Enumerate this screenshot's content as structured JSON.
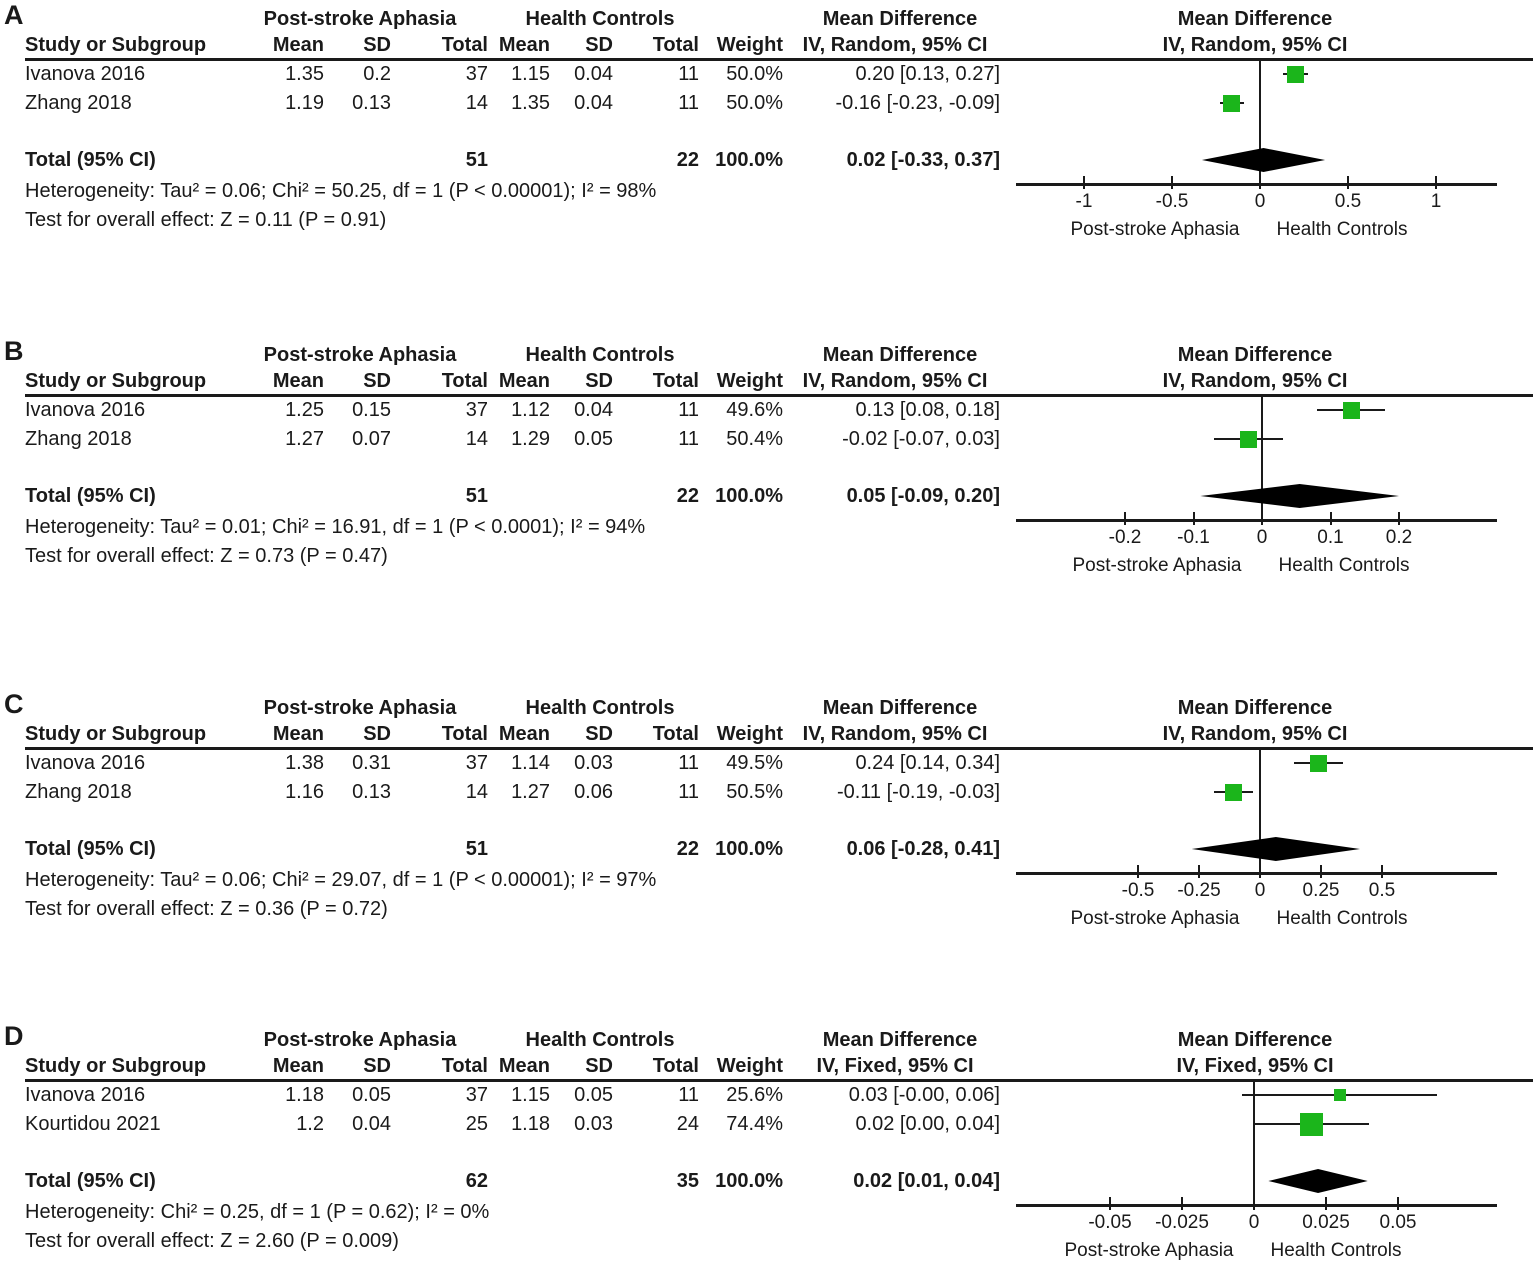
{
  "style": {
    "marker_color": "#1bb51b",
    "diamond_color": "#000000",
    "line_color": "#1a1a1a",
    "text_color": "#1a1a1a"
  },
  "chart_data": [
    {
      "type": "forest",
      "panel": "A",
      "effect_header": "Mean Difference",
      "effect_subheader": "IV, Random, 95% CI",
      "group_headers": [
        "Post-stroke Aphasia",
        "Health Controls"
      ],
      "columns": {
        "study": "Study or Subgroup",
        "mean": "Mean",
        "sd": "SD",
        "total": "Total",
        "weight": "Weight"
      },
      "studies": [
        {
          "study": "Ivanova 2016",
          "mean1": "1.35",
          "sd1": "0.2",
          "total1": "37",
          "mean2": "1.15",
          "sd2": "0.04",
          "total2": "11",
          "weight": "50.0%",
          "ci_text": "0.20 [0.13, 0.27]",
          "est": 0.2,
          "lo": 0.13,
          "hi": 0.27,
          "weight_val": 50.0
        },
        {
          "study": "Zhang 2018",
          "mean1": "1.19",
          "sd1": "0.13",
          "total1": "14",
          "mean2": "1.35",
          "sd2": "0.04",
          "total2": "11",
          "weight": "50.0%",
          "ci_text": "-0.16 [-0.23, -0.09]",
          "est": -0.16,
          "lo": -0.23,
          "hi": -0.09,
          "weight_val": 50.0
        }
      ],
      "total": {
        "label": "Total (95% CI)",
        "total1": "51",
        "total2": "22",
        "weight": "100.0%",
        "ci_text": "0.02 [-0.33, 0.37]",
        "est": 0.02,
        "lo": -0.33,
        "hi": 0.37
      },
      "heterogeneity": "Heterogeneity: Tau² = 0.06; Chi² = 50.25, df = 1 (P < 0.00001); I² = 98%",
      "overall_effect_test": "Test for overall effect: Z = 0.11 (P = 0.91)",
      "axis": {
        "ticks": [
          -1,
          -0.5,
          0,
          0.5,
          1
        ],
        "left_label": "Post-stroke Aphasia",
        "right_label": "Health Controls"
      }
    },
    {
      "type": "forest",
      "panel": "B",
      "effect_header": "Mean Difference",
      "effect_subheader": "IV, Random, 95% CI",
      "group_headers": [
        "Post-stroke Aphasia",
        "Health Controls"
      ],
      "columns": {
        "study": "Study or Subgroup",
        "mean": "Mean",
        "sd": "SD",
        "total": "Total",
        "weight": "Weight"
      },
      "studies": [
        {
          "study": "Ivanova 2016",
          "mean1": "1.25",
          "sd1": "0.15",
          "total1": "37",
          "mean2": "1.12",
          "sd2": "0.04",
          "total2": "11",
          "weight": "49.6%",
          "ci_text": "0.13 [0.08, 0.18]",
          "est": 0.13,
          "lo": 0.08,
          "hi": 0.18,
          "weight_val": 49.6
        },
        {
          "study": "Zhang 2018",
          "mean1": "1.27",
          "sd1": "0.07",
          "total1": "14",
          "mean2": "1.29",
          "sd2": "0.05",
          "total2": "11",
          "weight": "50.4%",
          "ci_text": "-0.02 [-0.07, 0.03]",
          "est": -0.02,
          "lo": -0.07,
          "hi": 0.03,
          "weight_val": 50.4
        }
      ],
      "total": {
        "label": "Total (95% CI)",
        "total1": "51",
        "total2": "22",
        "weight": "100.0%",
        "ci_text": "0.05 [-0.09, 0.20]",
        "est": 0.05,
        "lo": -0.09,
        "hi": 0.2
      },
      "heterogeneity": "Heterogeneity: Tau² = 0.01; Chi² = 16.91, df = 1 (P < 0.0001); I² = 94%",
      "overall_effect_test": "Test for overall effect: Z = 0.73 (P = 0.47)",
      "axis": {
        "ticks": [
          -0.2,
          -0.1,
          0,
          0.1,
          0.2
        ],
        "left_label": "Post-stroke Aphasia",
        "right_label": "Health Controls"
      }
    },
    {
      "type": "forest",
      "panel": "C",
      "effect_header": "Mean Difference",
      "effect_subheader": "IV, Random, 95% CI",
      "group_headers": [
        "Post-stroke Aphasia",
        "Health Controls"
      ],
      "columns": {
        "study": "Study or Subgroup",
        "mean": "Mean",
        "sd": "SD",
        "total": "Total",
        "weight": "Weight"
      },
      "studies": [
        {
          "study": "Ivanova 2016",
          "mean1": "1.38",
          "sd1": "0.31",
          "total1": "37",
          "mean2": "1.14",
          "sd2": "0.03",
          "total2": "11",
          "weight": "49.5%",
          "ci_text": "0.24 [0.14, 0.34]",
          "est": 0.24,
          "lo": 0.14,
          "hi": 0.34,
          "weight_val": 49.5
        },
        {
          "study": "Zhang 2018",
          "mean1": "1.16",
          "sd1": "0.13",
          "total1": "14",
          "mean2": "1.27",
          "sd2": "0.06",
          "total2": "11",
          "weight": "50.5%",
          "ci_text": "-0.11 [-0.19, -0.03]",
          "est": -0.11,
          "lo": -0.19,
          "hi": -0.03,
          "weight_val": 50.5
        }
      ],
      "total": {
        "label": "Total (95% CI)",
        "total1": "51",
        "total2": "22",
        "weight": "100.0%",
        "ci_text": "0.06 [-0.28, 0.41]",
        "est": 0.06,
        "lo": -0.28,
        "hi": 0.41
      },
      "heterogeneity": "Heterogeneity: Tau² = 0.06; Chi² = 29.07, df = 1 (P < 0.00001); I² = 97%",
      "overall_effect_test": "Test for overall effect: Z = 0.36 (P = 0.72)",
      "axis": {
        "ticks": [
          -0.5,
          -0.25,
          0,
          0.25,
          0.5
        ],
        "left_label": "Post-stroke Aphasia",
        "right_label": "Health Controls"
      }
    },
    {
      "type": "forest",
      "panel": "D",
      "effect_header": "Mean Difference",
      "effect_subheader": "IV, Fixed, 95% CI",
      "group_headers": [
        "Post-stroke Aphasia",
        "Health Controls"
      ],
      "columns": {
        "study": "Study or Subgroup",
        "mean": "Mean",
        "sd": "SD",
        "total": "Total",
        "weight": "Weight"
      },
      "studies": [
        {
          "study": "Ivanova 2016",
          "mean1": "1.18",
          "sd1": "0.05",
          "total1": "37",
          "mean2": "1.15",
          "sd2": "0.05",
          "total2": "11",
          "weight": "25.6%",
          "ci_text": "0.03 [-0.00, 0.06]",
          "est": 0.03,
          "lo": -0.004,
          "hi": 0.0635,
          "weight_val": 25.6
        },
        {
          "study": "Kourtidou 2021",
          "mean1": "1.2",
          "sd1": "0.04",
          "total1": "25",
          "mean2": "1.18",
          "sd2": "0.03",
          "total2": "24",
          "weight": "74.4%",
          "ci_text": "0.02 [0.00, 0.04]",
          "est": 0.02,
          "lo": 0.0,
          "hi": 0.04,
          "weight_val": 74.4
        }
      ],
      "total": {
        "label": "Total (95% CI)",
        "total1": "62",
        "total2": "35",
        "weight": "100.0%",
        "ci_text": "0.02 [0.01, 0.04]",
        "est": 0.02,
        "lo": 0.005,
        "hi": 0.0395
      },
      "heterogeneity": "Heterogeneity: Chi² = 0.25, df = 1 (P = 0.62); I² = 0%",
      "overall_effect_test": "Test for overall effect: Z = 2.60 (P = 0.009)",
      "axis": {
        "ticks": [
          -0.05,
          -0.025,
          0,
          0.025,
          0.05
        ],
        "left_label": "Post-stroke Aphasia",
        "right_label": "Health Controls"
      }
    }
  ]
}
